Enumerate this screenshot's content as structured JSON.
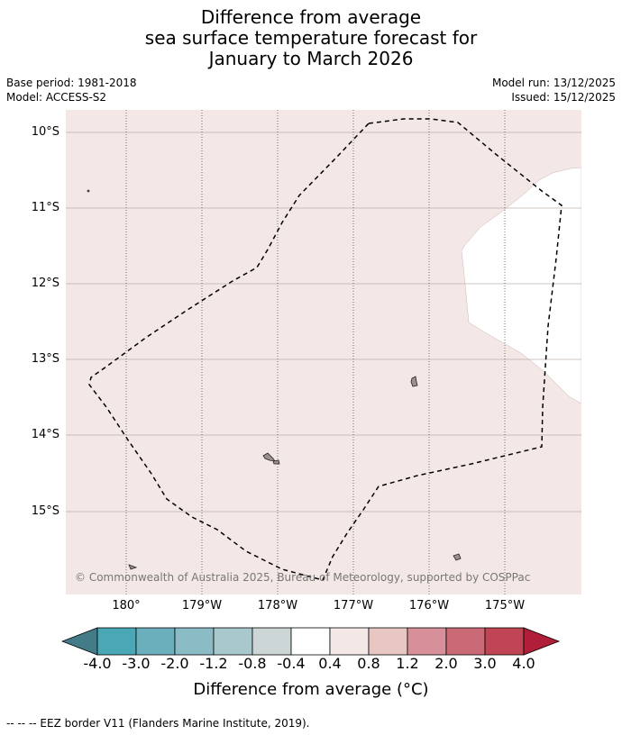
{
  "title": {
    "line1": "Difference from average",
    "line2": "sea surface temperature forecast for",
    "line3": "January to March 2026"
  },
  "meta": {
    "base_period": "Base period: 1981-2018",
    "model": "Model: ACCESS-S2",
    "model_run": "Model run: 13/12/2025",
    "issued": "Issued: 15/12/2025"
  },
  "map": {
    "lat_labels": [
      "10°S",
      "11°S",
      "12°S",
      "13°S",
      "14°S",
      "15°S"
    ],
    "lon_labels": [
      "180°",
      "179°W",
      "178°W",
      "177°W",
      "176°W",
      "175°W"
    ],
    "copyright": "© Commonwealth of Australia 2025, Bureau of Meteorology, supported by COSPPac",
    "anomaly_fill_color": "#f4e8e6",
    "land_color": "#9e8e8e",
    "eez_border_style": "dashed black"
  },
  "colorbar": {
    "ticks": [
      "-4.0",
      "-3.0",
      "-2.0",
      "-1.2",
      "-0.8",
      "-0.4",
      "0.4",
      "0.8",
      "1.2",
      "2.0",
      "3.0",
      "4.0"
    ],
    "colors": [
      "#437c86",
      "#4aa7b5",
      "#6aafbb",
      "#8bbcc6",
      "#a9c8cd",
      "#cdd6d7",
      "#ffffff",
      "#f4e8e6",
      "#e8c7c3",
      "#d7909a",
      "#cb6a77",
      "#c04454",
      "#b01e3a"
    ],
    "label": "Difference from average (°C)"
  },
  "footer": "-- -- -- EEZ border V11 (Flanders Marine Institute, 2019)."
}
